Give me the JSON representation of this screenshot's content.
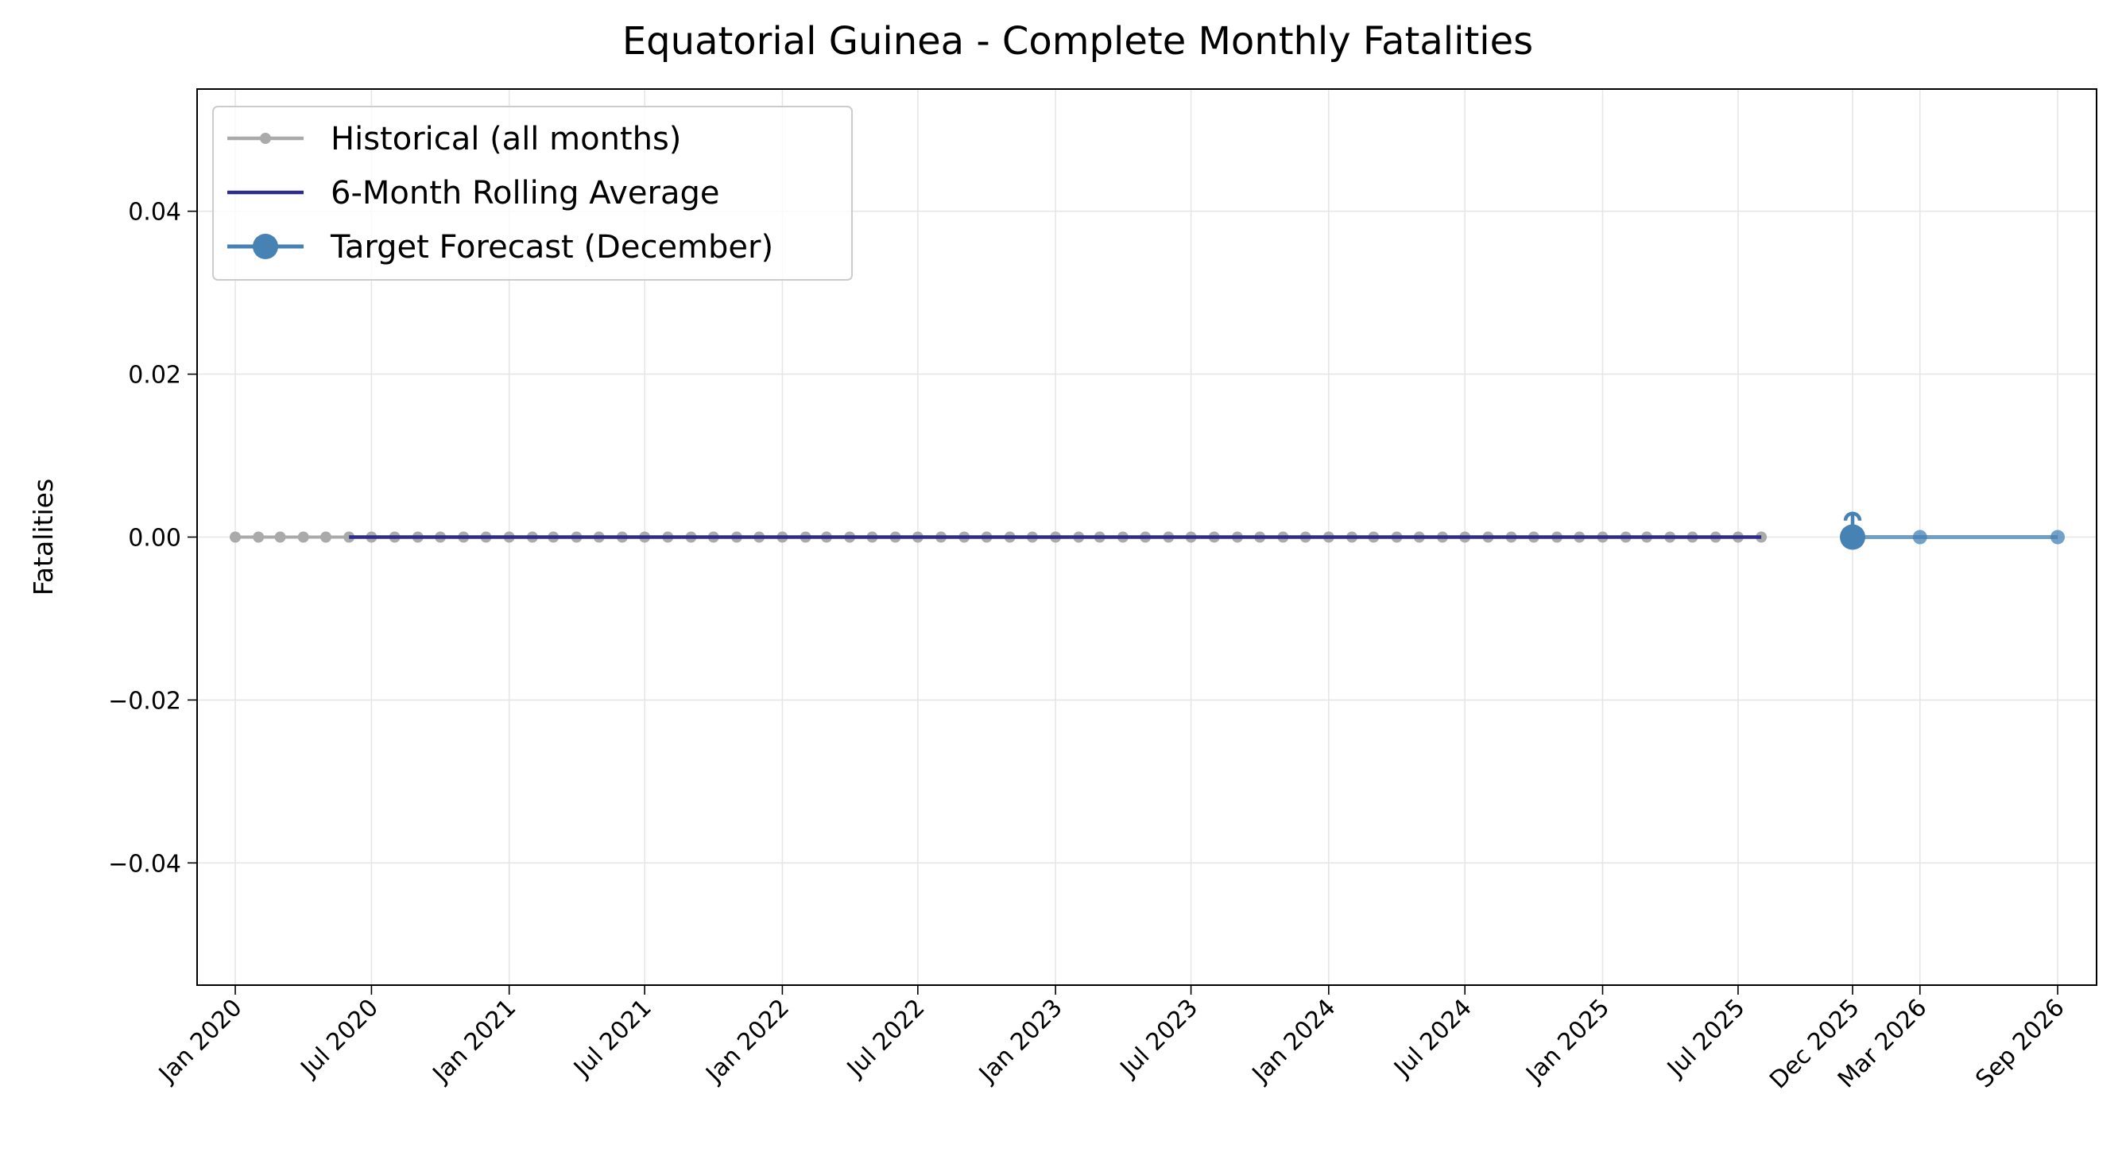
{
  "chart_data": {
    "type": "line",
    "title": "Equatorial Guinea - Complete Monthly Fatalities",
    "xlabel": "",
    "ylabel": "Fatalities",
    "ylim": [
      -0.055,
      0.055
    ],
    "yticks": [
      -0.04,
      -0.02,
      0.0,
      0.02,
      0.04
    ],
    "ytick_labels": [
      "−0.04",
      "−0.02",
      "0.00",
      "0.02",
      "0.04"
    ],
    "xlim": [
      "2019-11-11",
      "2026-10-23"
    ],
    "xticks": [
      {
        "date": "2020-01-01",
        "label": "Jan 2020"
      },
      {
        "date": "2020-07-01",
        "label": "Jul 2020"
      },
      {
        "date": "2021-01-01",
        "label": "Jan 2021"
      },
      {
        "date": "2021-07-01",
        "label": "Jul 2021"
      },
      {
        "date": "2022-01-01",
        "label": "Jan 2022"
      },
      {
        "date": "2022-07-01",
        "label": "Jul 2022"
      },
      {
        "date": "2023-01-01",
        "label": "Jan 2023"
      },
      {
        "date": "2023-07-01",
        "label": "Jul 2023"
      },
      {
        "date": "2024-01-01",
        "label": "Jan 2024"
      },
      {
        "date": "2024-07-01",
        "label": "Jul 2024"
      },
      {
        "date": "2025-01-01",
        "label": "Jan 2025"
      },
      {
        "date": "2025-07-01",
        "label": "Jul 2025"
      },
      {
        "date": "2025-12-01",
        "label": "Dec 2025"
      },
      {
        "date": "2026-03-01",
        "label": "Mar 2026"
      },
      {
        "date": "2026-09-01",
        "label": "Sep 2026"
      }
    ],
    "grid": true,
    "legend_position": "top-left",
    "series": [
      {
        "name": "Historical (all months)",
        "color": "#aaaaaa",
        "marker": "small-circle",
        "start": "2020-01-01",
        "end": "2025-08-01",
        "frequency": "monthly",
        "value": 0
      },
      {
        "name": "6-Month Rolling Average",
        "color": "#2e2e8a",
        "marker": "none",
        "start": "2020-06-01",
        "end": "2025-08-01",
        "value": 0
      },
      {
        "name": "Target Forecast (December)",
        "color": "#4682b4",
        "marker": "large-circle",
        "x": [
          "2025-12-01"
        ],
        "y": [
          0
        ]
      },
      {
        "name": "",
        "color": "#4682b4",
        "marker": "medium-circle",
        "x": [
          "2025-12-01",
          "2026-03-01",
          "2026-09-01"
        ],
        "y": [
          0,
          0,
          0
        ]
      }
    ],
    "error_bar": {
      "x": "2025-12-01",
      "low": 0,
      "high": 0.003,
      "color": "#4682b4"
    }
  }
}
